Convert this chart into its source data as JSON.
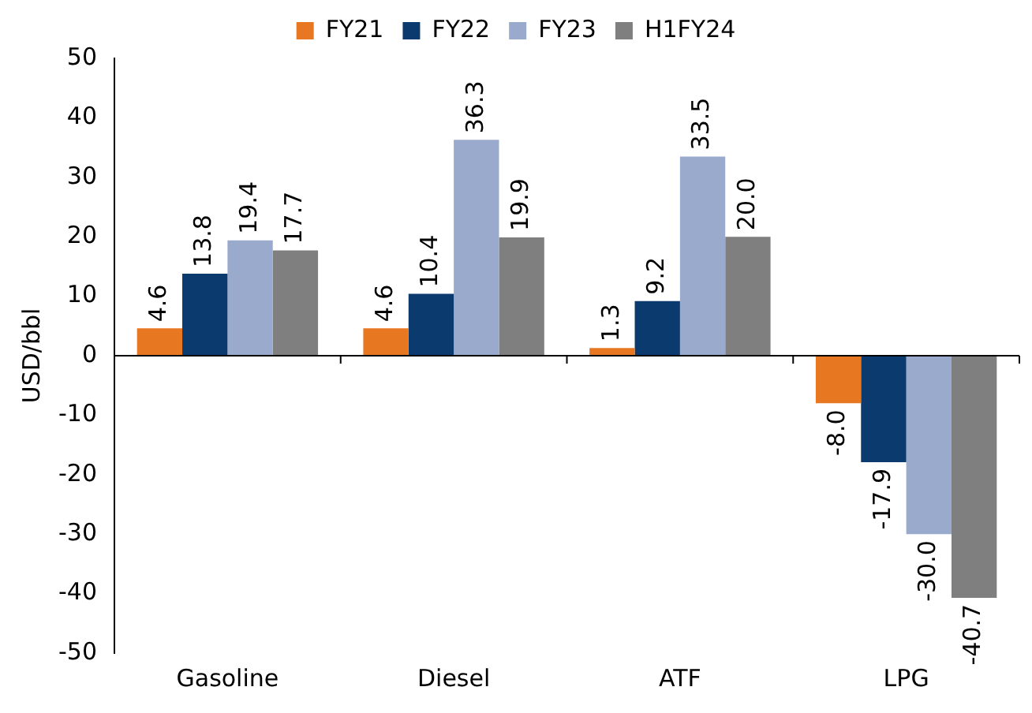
{
  "chart_data": {
    "type": "bar",
    "ylabel": "USD/bbl",
    "categories": [
      "Gasoline",
      "Diesel",
      "ATF",
      "LPG"
    ],
    "series": [
      {
        "name": "FY21",
        "color": "#e87722",
        "values": [
          4.6,
          4.6,
          1.3,
          -8.0
        ],
        "value_labels": [
          "4.6",
          "4.6",
          "1.3",
          "-8.0"
        ]
      },
      {
        "name": "FY22",
        "color": "#0b3a6e",
        "values": [
          13.8,
          10.4,
          9.2,
          -17.9
        ],
        "value_labels": [
          "13.8",
          "10.4",
          "9.2",
          "-17.9"
        ]
      },
      {
        "name": "FY23",
        "color": "#9aaacd",
        "values": [
          19.4,
          36.3,
          33.5,
          -30.0
        ],
        "value_labels": [
          "19.4",
          "36.3",
          "33.5",
          "-30.0"
        ]
      },
      {
        "name": "H1FY24",
        "color": "#7f7f7f",
        "values": [
          17.7,
          19.9,
          20.0,
          -40.7
        ],
        "value_labels": [
          "17.7",
          "19.9",
          "20.0",
          "-40.7"
        ]
      }
    ],
    "ylim": [
      -50,
      50
    ],
    "yticks": [
      -50,
      -40,
      -30,
      -20,
      -10,
      0,
      10,
      20,
      30,
      40,
      50
    ],
    "legend": "top"
  }
}
